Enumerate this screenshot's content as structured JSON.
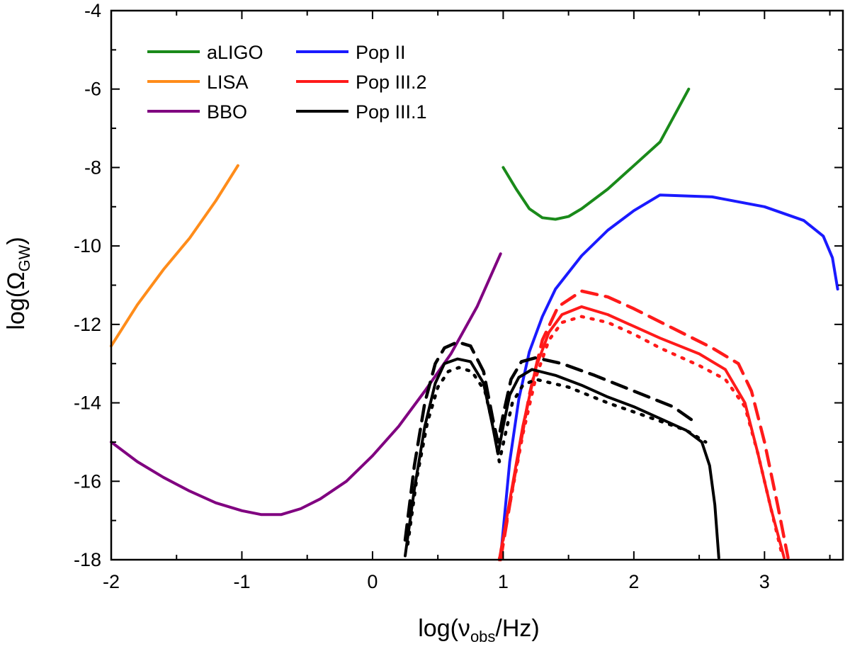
{
  "chart_data": {
    "type": "line",
    "title": "",
    "xlabel": {
      "main": "log(ν",
      "sub": "obs",
      "tail": "/Hz)"
    },
    "ylabel": {
      "main": "log(Ω",
      "sub": "GW",
      "tail": ")"
    },
    "xlim": [
      -2,
      3.6
    ],
    "ylim": [
      -18,
      -4
    ],
    "xticks": [
      -2,
      -1,
      0,
      1,
      2,
      3
    ],
    "xtick_labels": [
      "-2",
      "-1",
      "0",
      "1",
      "2",
      "3"
    ],
    "yticks": [
      -18,
      -16,
      -14,
      -12,
      -10,
      -8,
      -6,
      -4
    ],
    "ytick_labels": [
      "-18",
      "-16",
      "-14",
      "-12",
      "-10",
      "-8",
      "-6",
      "-4"
    ],
    "grid": false,
    "legend_placement": "top-left",
    "legend": [
      {
        "name": "aLIGO",
        "color": "#1a8a1a"
      },
      {
        "name": "LISA",
        "color": "#ff8c1a"
      },
      {
        "name": "BBO",
        "color": "#800080"
      },
      {
        "name": "Pop II",
        "color": "#1a1aff"
      },
      {
        "name": "Pop III.2",
        "color": "#ff1a1a"
      },
      {
        "name": "Pop III.1",
        "color": "#000000"
      }
    ],
    "series": [
      {
        "key": "lisa",
        "color": "#ff8c1a",
        "dash": "solid",
        "points": [
          [
            -2.0,
            -12.55
          ],
          [
            -1.8,
            -11.5
          ],
          [
            -1.6,
            -10.6
          ],
          [
            -1.4,
            -9.8
          ],
          [
            -1.2,
            -8.85
          ],
          [
            -1.03,
            -7.95
          ]
        ]
      },
      {
        "key": "bbo",
        "color": "#800080",
        "dash": "solid",
        "points": [
          [
            -2.0,
            -15.0
          ],
          [
            -1.8,
            -15.5
          ],
          [
            -1.6,
            -15.9
          ],
          [
            -1.4,
            -16.25
          ],
          [
            -1.2,
            -16.55
          ],
          [
            -1.0,
            -16.75
          ],
          [
            -0.85,
            -16.85
          ],
          [
            -0.7,
            -16.85
          ],
          [
            -0.55,
            -16.7
          ],
          [
            -0.4,
            -16.45
          ],
          [
            -0.2,
            -16.0
          ],
          [
            0.0,
            -15.35
          ],
          [
            0.2,
            -14.6
          ],
          [
            0.4,
            -13.7
          ],
          [
            0.6,
            -12.75
          ],
          [
            0.8,
            -11.55
          ],
          [
            0.98,
            -10.2
          ]
        ]
      },
      {
        "key": "aligo",
        "color": "#1a8a1a",
        "dash": "solid",
        "points": [
          [
            1.0,
            -8.0
          ],
          [
            1.1,
            -8.55
          ],
          [
            1.2,
            -9.05
          ],
          [
            1.3,
            -9.28
          ],
          [
            1.4,
            -9.32
          ],
          [
            1.5,
            -9.25
          ],
          [
            1.6,
            -9.05
          ],
          [
            1.8,
            -8.55
          ],
          [
            2.0,
            -7.95
          ],
          [
            2.2,
            -7.35
          ],
          [
            2.42,
            -6.0
          ]
        ]
      },
      {
        "key": "pop2",
        "color": "#1a1aff",
        "dash": "solid",
        "points": [
          [
            0.98,
            -17.95
          ],
          [
            1.05,
            -15.5
          ],
          [
            1.12,
            -13.9
          ],
          [
            1.2,
            -12.7
          ],
          [
            1.3,
            -11.8
          ],
          [
            1.4,
            -11.1
          ],
          [
            1.6,
            -10.25
          ],
          [
            1.8,
            -9.6
          ],
          [
            2.0,
            -9.1
          ],
          [
            2.2,
            -8.7
          ],
          [
            2.6,
            -8.75
          ],
          [
            3.0,
            -9.0
          ],
          [
            3.3,
            -9.35
          ],
          [
            3.45,
            -9.75
          ],
          [
            3.52,
            -10.3
          ],
          [
            3.56,
            -11.1
          ]
        ]
      },
      {
        "key": "pop32-solid",
        "color": "#ff1a1a",
        "dash": "solid",
        "points": [
          [
            0.97,
            -18.0
          ],
          [
            1.05,
            -16.5
          ],
          [
            1.15,
            -14.6
          ],
          [
            1.25,
            -13.1
          ],
          [
            1.35,
            -12.2
          ],
          [
            1.45,
            -11.75
          ],
          [
            1.6,
            -11.55
          ],
          [
            1.8,
            -11.75
          ],
          [
            2.0,
            -12.05
          ],
          [
            2.2,
            -12.35
          ],
          [
            2.5,
            -12.75
          ],
          [
            2.7,
            -13.15
          ],
          [
            2.85,
            -14.0
          ],
          [
            2.95,
            -15.3
          ],
          [
            3.05,
            -16.7
          ],
          [
            3.15,
            -17.95
          ]
        ]
      },
      {
        "key": "pop32-dash",
        "color": "#ff1a1a",
        "dash": "dash",
        "points": [
          [
            0.98,
            -18.0
          ],
          [
            1.08,
            -16.0
          ],
          [
            1.2,
            -13.8
          ],
          [
            1.3,
            -12.4
          ],
          [
            1.42,
            -11.55
          ],
          [
            1.6,
            -11.15
          ],
          [
            1.8,
            -11.3
          ],
          [
            2.0,
            -11.6
          ],
          [
            2.3,
            -12.1
          ],
          [
            2.6,
            -12.6
          ],
          [
            2.8,
            -13.0
          ],
          [
            2.9,
            -13.7
          ],
          [
            3.0,
            -15.0
          ],
          [
            3.1,
            -16.6
          ],
          [
            3.18,
            -17.95
          ]
        ]
      },
      {
        "key": "pop32-dot",
        "color": "#ff1a1a",
        "dash": "dot",
        "points": [
          [
            0.97,
            -18.0
          ],
          [
            1.05,
            -16.6
          ],
          [
            1.15,
            -14.8
          ],
          [
            1.25,
            -13.35
          ],
          [
            1.35,
            -12.4
          ],
          [
            1.45,
            -11.95
          ],
          [
            1.6,
            -11.8
          ],
          [
            1.8,
            -11.95
          ],
          [
            2.0,
            -12.25
          ],
          [
            2.2,
            -12.6
          ],
          [
            2.5,
            -13.05
          ],
          [
            2.7,
            -13.4
          ],
          [
            2.85,
            -14.1
          ],
          [
            2.95,
            -15.3
          ],
          [
            3.05,
            -16.7
          ],
          [
            3.14,
            -17.95
          ]
        ]
      },
      {
        "key": "pop31-solid",
        "color": "#000000",
        "dash": "solid",
        "points": [
          [
            0.25,
            -17.9
          ],
          [
            0.32,
            -16.2
          ],
          [
            0.4,
            -14.6
          ],
          [
            0.48,
            -13.5
          ],
          [
            0.55,
            -13.0
          ],
          [
            0.65,
            -12.88
          ],
          [
            0.75,
            -12.95
          ],
          [
            0.85,
            -13.5
          ],
          [
            0.92,
            -14.6
          ],
          [
            0.96,
            -15.3
          ],
          [
            1.0,
            -14.6
          ],
          [
            1.05,
            -13.8
          ],
          [
            1.12,
            -13.35
          ],
          [
            1.22,
            -13.15
          ],
          [
            1.4,
            -13.3
          ],
          [
            1.6,
            -13.55
          ],
          [
            1.8,
            -13.85
          ],
          [
            2.0,
            -14.1
          ],
          [
            2.2,
            -14.4
          ],
          [
            2.4,
            -14.7
          ],
          [
            2.52,
            -15.0
          ],
          [
            2.58,
            -15.6
          ],
          [
            2.62,
            -16.6
          ],
          [
            2.65,
            -17.95
          ]
        ]
      },
      {
        "key": "pop31-dash",
        "color": "#000000",
        "dash": "dash",
        "points": [
          [
            0.25,
            -17.5
          ],
          [
            0.32,
            -15.6
          ],
          [
            0.4,
            -14.0
          ],
          [
            0.48,
            -13.0
          ],
          [
            0.55,
            -12.6
          ],
          [
            0.65,
            -12.45
          ],
          [
            0.75,
            -12.55
          ],
          [
            0.85,
            -13.2
          ],
          [
            0.92,
            -14.4
          ],
          [
            0.96,
            -15.0
          ],
          [
            1.0,
            -14.3
          ],
          [
            1.06,
            -13.4
          ],
          [
            1.14,
            -12.95
          ],
          [
            1.25,
            -12.85
          ],
          [
            1.45,
            -13.0
          ],
          [
            1.7,
            -13.3
          ],
          [
            2.0,
            -13.7
          ],
          [
            2.3,
            -14.1
          ],
          [
            2.45,
            -14.45
          ]
        ]
      },
      {
        "key": "pop31-dot",
        "color": "#000000",
        "dash": "dot",
        "points": [
          [
            0.27,
            -17.6
          ],
          [
            0.34,
            -15.9
          ],
          [
            0.42,
            -14.5
          ],
          [
            0.5,
            -13.6
          ],
          [
            0.58,
            -13.2
          ],
          [
            0.66,
            -13.1
          ],
          [
            0.76,
            -13.2
          ],
          [
            0.86,
            -13.7
          ],
          [
            0.93,
            -14.7
          ],
          [
            0.97,
            -15.5
          ],
          [
            1.01,
            -14.9
          ],
          [
            1.07,
            -14.0
          ],
          [
            1.15,
            -13.55
          ],
          [
            1.25,
            -13.4
          ],
          [
            1.5,
            -13.6
          ],
          [
            1.8,
            -14.0
          ],
          [
            2.1,
            -14.35
          ],
          [
            2.4,
            -14.7
          ],
          [
            2.55,
            -15.0
          ]
        ]
      }
    ]
  }
}
